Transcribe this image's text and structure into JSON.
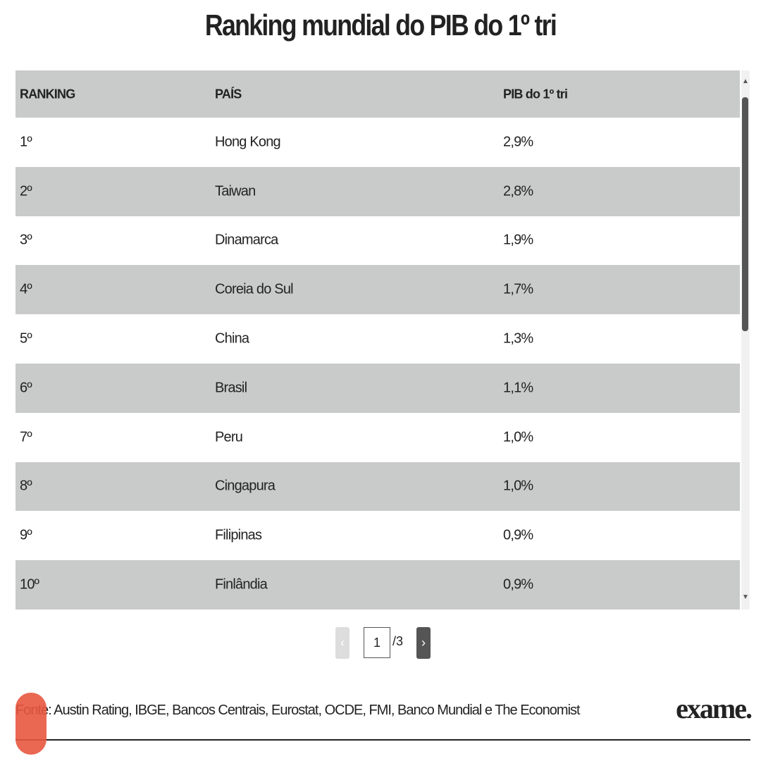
{
  "header": {
    "title": "Ranking mundial do PIB do 1º tri"
  },
  "table": {
    "columns": [
      "RANKING",
      "PAÍS",
      "PIB do 1º tri"
    ],
    "rows": [
      [
        "1º",
        "Hong Kong",
        "2,9%"
      ],
      [
        "2º",
        "Taiwan",
        "2,8%"
      ],
      [
        "3º",
        "Dinamarca",
        "1,9%"
      ],
      [
        "4º",
        "Coreia do Sul",
        "1,7%"
      ],
      [
        "5º",
        "China",
        "1,3%"
      ],
      [
        "6º",
        "Brasil",
        "1,1%"
      ],
      [
        "7º",
        "Peru",
        "1,0%"
      ],
      [
        "8º",
        "Cingapura",
        "1,0%"
      ],
      [
        "9º",
        "Filipinas",
        "0,9%"
      ],
      [
        "10º",
        "Finlândia",
        "0,9%"
      ]
    ]
  },
  "pagination": {
    "prev": "‹",
    "current": "1",
    "total": "/3",
    "next": "›"
  },
  "footer": {
    "source": "Fonte: Austin Rating, IBGE, Bancos Centrais, Eurostat, OCDE, FMI, Banco Mundial e The Economist",
    "logo": "exame."
  }
}
